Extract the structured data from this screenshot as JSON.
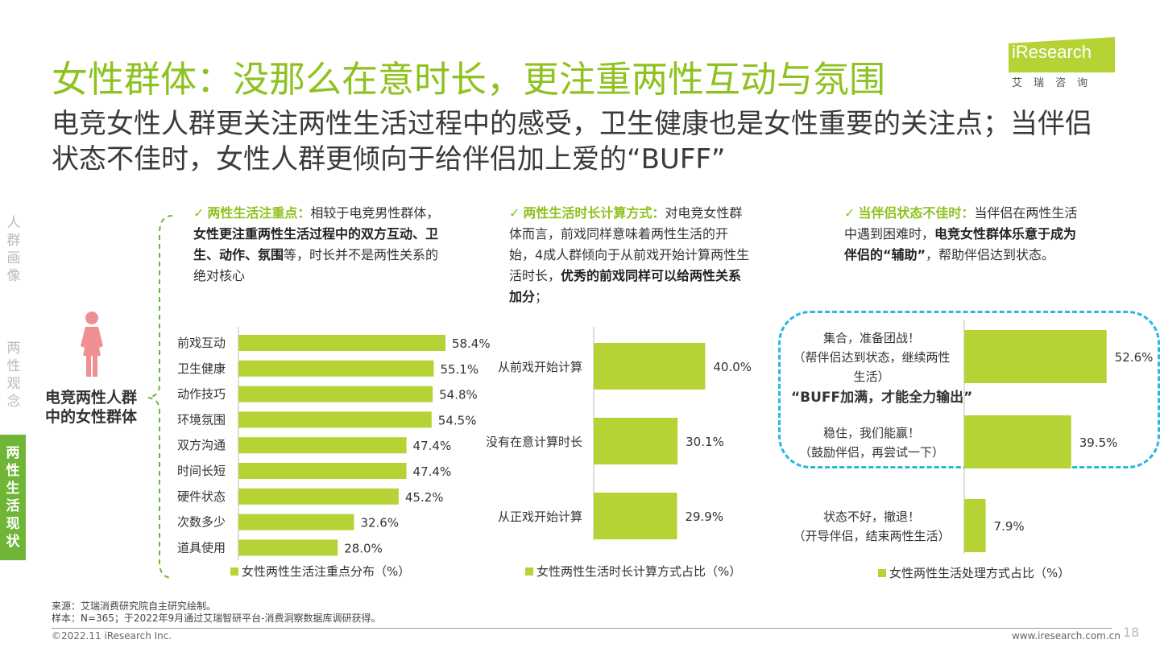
{
  "title": "女性群体：没那么在意时长，更注重两性互动与氛围",
  "subtitle": "电竞女性人群更关注两性生活过程中的感受，卫生健康也是女性重要的关注点；当伴侣状态不佳时，女性人群更倾向于给伴侣加上爱的“BUFF”",
  "logo": {
    "text": "iResearch",
    "sub": "艾瑞咨询"
  },
  "sidebar": {
    "items": [
      "人群画像",
      "两性观念"
    ],
    "active": "两性生活现状"
  },
  "persona_label": "电竞两性人群中的女性群体",
  "notes": [
    {
      "head": "两性生活注重点：",
      "parts": [
        {
          "t": "相较于电竞男性群体，",
          "b": false
        },
        {
          "t": "女性更注重两性生活过程中的双方互动、卫生、动作、氛围",
          "b": true
        },
        {
          "t": "等，时长并不是两性关系的绝对核心",
          "b": false
        }
      ]
    },
    {
      "head": "两性生活时长计算方式：",
      "parts": [
        {
          "t": "对电竞女性群体而言，前戏同样意味着两性生活的开始，4成人群倾向于从前戏开始计算两性生活时长，",
          "b": false
        },
        {
          "t": "优秀的前戏同样可以给两性关系加分",
          "b": true
        },
        {
          "t": "；",
          "b": false
        }
      ]
    },
    {
      "head": "当伴侣状态不佳时：",
      "parts": [
        {
          "t": "当伴侣在两性生活中遇到困难时，",
          "b": false
        },
        {
          "t": "电竞女性群体乐意于成为伴侣的“辅助”",
          "b": true
        },
        {
          "t": "，帮助伴侣达到状态。",
          "b": false
        }
      ]
    }
  ],
  "buff_text": "“BUFF加满，才能全力输出”",
  "check_mark": "✓",
  "colors": {
    "accent": "#8dc21f",
    "bar": "#b5d334",
    "dash": "#2bb7e0",
    "active_tab": "#6fb536"
  },
  "chart_data": [
    {
      "type": "bar",
      "orientation": "horizontal",
      "categories": [
        "前戏互动",
        "卫生健康",
        "动作技巧",
        "环境氛围",
        "双方沟通",
        "时间长短",
        "硬件状态",
        "次数多少",
        "道具使用"
      ],
      "values": [
        58.4,
        55.1,
        54.8,
        54.5,
        47.4,
        47.4,
        45.2,
        32.6,
        28.0
      ],
      "value_labels": [
        "58.4%",
        "55.1%",
        "54.8%",
        "54.5%",
        "47.4%",
        "47.4%",
        "45.2%",
        "32.6%",
        "28.0%"
      ],
      "legend": "女性两性生活注重点分布（%）"
    },
    {
      "type": "bar",
      "orientation": "horizontal",
      "categories": [
        "从前戏开始计算",
        "没有在意计算时长",
        "从正戏开始计算"
      ],
      "values": [
        40.0,
        30.1,
        29.9
      ],
      "value_labels": [
        "40.0%",
        "30.1%",
        "29.9%"
      ],
      "legend": "女性两性生活时长计算方式占比（%）"
    },
    {
      "type": "bar",
      "orientation": "horizontal",
      "categories": [
        [
          "集合，准备团战！",
          "（帮伴侣达到状态，继续两性",
          "生活）"
        ],
        [
          "稳住，我们能赢！",
          "（鼓励伴侣，再尝试一下）"
        ],
        [
          "状态不好，撤退！",
          "（开导伴侣，结束两性生活）"
        ]
      ],
      "values": [
        52.6,
        39.5,
        7.9
      ],
      "value_labels": [
        "52.6%",
        "39.5%",
        "7.9%"
      ],
      "legend": "女性两性生活处理方式占比（%）"
    }
  ],
  "footer": {
    "source": "来源：艾瑞消费研究院自主研究绘制。",
    "sample": "样本：N=365；于2022年9月通过艾瑞智研平台-消费洞察数据库调研获得。",
    "copyright": "©2022.11 iResearch Inc.",
    "url": "www.iresearch.com.cn",
    "page": "18"
  }
}
